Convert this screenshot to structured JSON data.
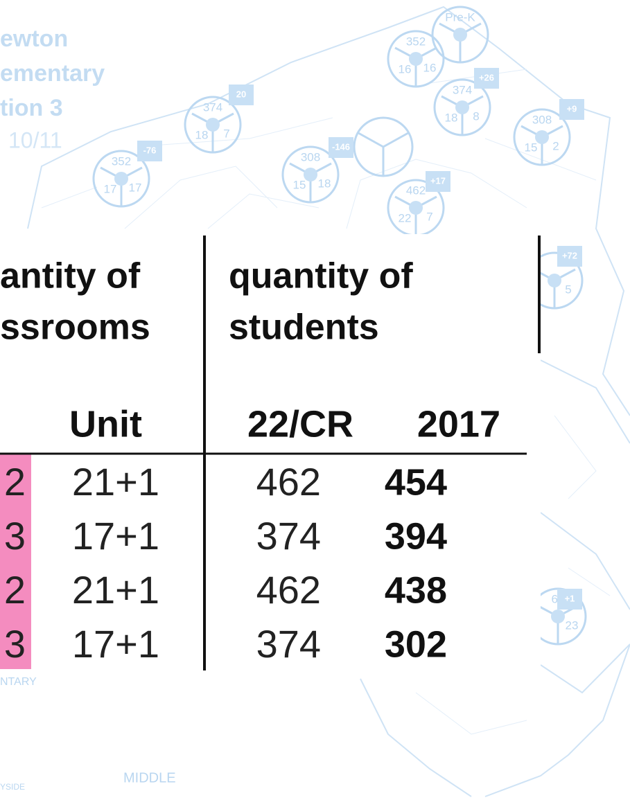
{
  "header": {
    "lines": [
      "ewton",
      "ementary",
      "tion 3"
    ],
    "date": "10/11"
  },
  "map": {
    "markers": [
      {
        "top": "Pre-K"
      },
      {
        "top": "352",
        "left": "16",
        "right": "16"
      },
      {
        "top": "374",
        "left": "18",
        "right": "8",
        "badge": "+26"
      },
      {
        "top": "308",
        "left": "15",
        "right": "2",
        "badge": "+9"
      },
      {
        "top": "374",
        "left": "18",
        "right": "7",
        "badge": "20"
      },
      {
        "top": "352",
        "left": "17",
        "right": "17",
        "badge": "-76"
      },
      {
        "top": "308",
        "left": "15",
        "right": "18",
        "badge": "-146"
      },
      {
        "top": "462",
        "left": "22",
        "right": "7",
        "badge": "+17"
      },
      {
        "right": "5",
        "badge": "+72"
      },
      {
        "top": "62",
        "right": "23",
        "badge": "+1"
      }
    ],
    "labels": [
      "NTARY",
      "MIDDLE",
      "YSIDE"
    ]
  },
  "table": {
    "group_headers": [
      [
        "antity of",
        "ssrooms"
      ],
      [
        "quantity of",
        "students"
      ]
    ],
    "sub_headers": [
      "Unit",
      "22/CR",
      "2017"
    ],
    "rows": [
      [
        "2",
        "21+1",
        "462",
        "454"
      ],
      [
        "3",
        "17+1",
        "374",
        "394"
      ],
      [
        "2",
        "21+1",
        "462",
        "438"
      ],
      [
        "3",
        "17+1",
        "374",
        "302"
      ]
    ]
  }
}
